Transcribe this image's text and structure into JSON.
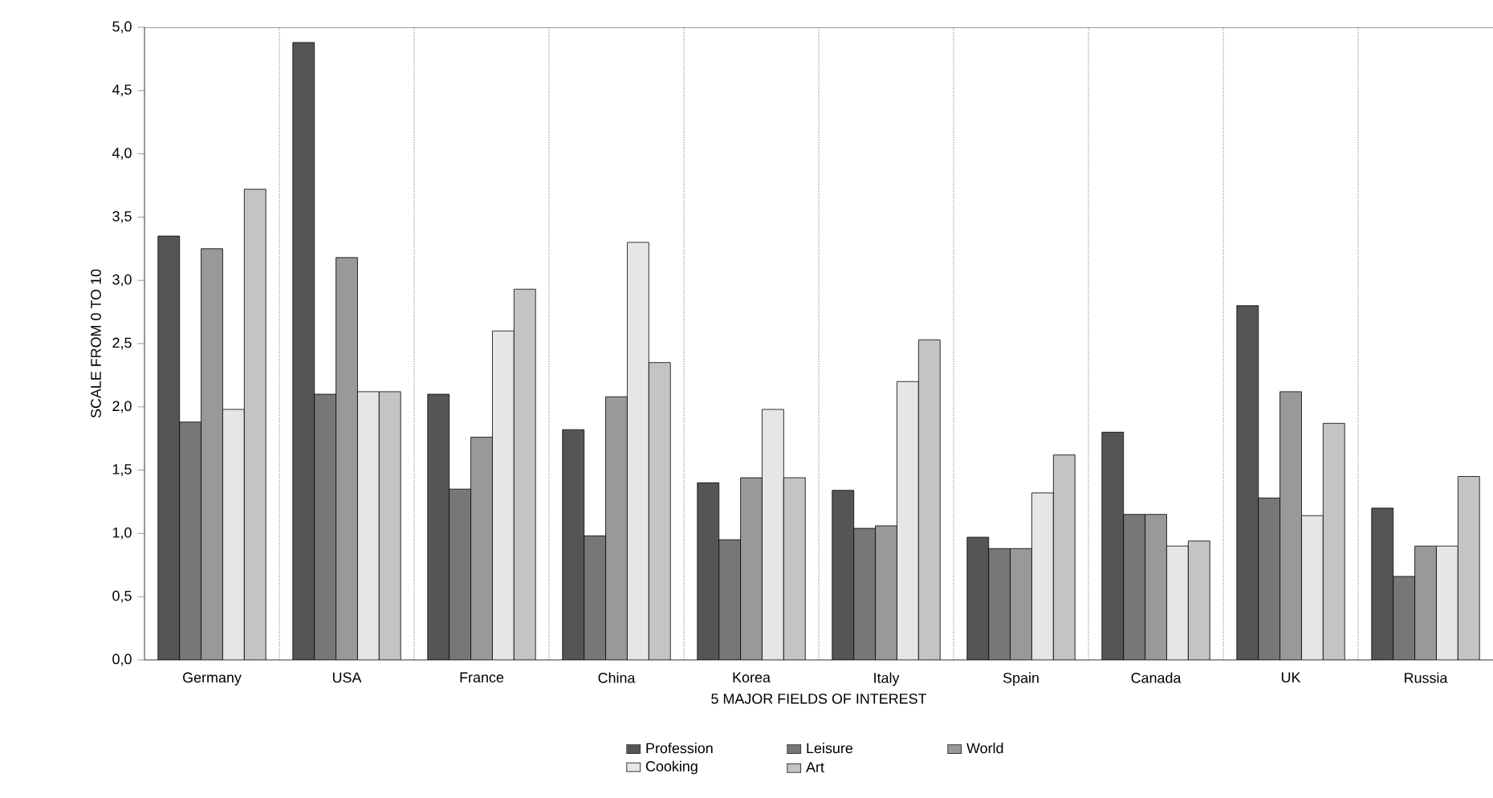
{
  "chart_data": {
    "type": "bar",
    "xlabel": "5 MAJOR FIELDS OF INTEREST",
    "ylabel": "SCALE FROM 0 TO 10",
    "categories": [
      "Germany",
      "USA",
      "France",
      "China",
      "Korea",
      "Italy",
      "Spain",
      "Canada",
      "UK",
      "Russia"
    ],
    "series": [
      {
        "name": "Profession",
        "color": "#555555",
        "values": [
          3.35,
          4.88,
          2.1,
          1.82,
          1.4,
          1.34,
          0.97,
          1.8,
          2.8,
          1.2
        ]
      },
      {
        "name": "Leisure",
        "color": "#777777",
        "values": [
          1.88,
          2.1,
          1.35,
          0.98,
          0.95,
          1.04,
          0.88,
          1.15,
          1.28,
          0.66
        ]
      },
      {
        "name": "World",
        "color": "#999999",
        "values": [
          3.25,
          3.18,
          1.76,
          2.08,
          1.44,
          1.06,
          0.88,
          1.15,
          2.12,
          0.9
        ]
      },
      {
        "name": "Cooking",
        "color": "#e6e6e6",
        "values": [
          1.98,
          2.12,
          2.6,
          3.3,
          1.98,
          2.2,
          1.32,
          0.9,
          1.14,
          0.9
        ]
      },
      {
        "name": "Art",
        "color": "#c4c4c4",
        "values": [
          3.72,
          2.12,
          2.93,
          2.35,
          1.44,
          2.53,
          1.62,
          0.94,
          1.87,
          1.45
        ]
      }
    ],
    "ylim": [
      0,
      5
    ],
    "yticks": [
      {
        "value": 0,
        "label": "0,0"
      },
      {
        "value": 0.5,
        "label": "0,5"
      },
      {
        "value": 1,
        "label": "1,0"
      },
      {
        "value": 1.5,
        "label": "1,5"
      },
      {
        "value": 2,
        "label": "2,0"
      },
      {
        "value": 2.5,
        "label": "2,5"
      },
      {
        "value": 3,
        "label": "3,0"
      },
      {
        "value": 3.5,
        "label": "3,5"
      },
      {
        "value": 4,
        "label": "4,0"
      },
      {
        "value": 4.5,
        "label": "4,5"
      },
      {
        "value": 5,
        "label": "5,0"
      }
    ],
    "grid": "x",
    "legend": "bottom"
  }
}
